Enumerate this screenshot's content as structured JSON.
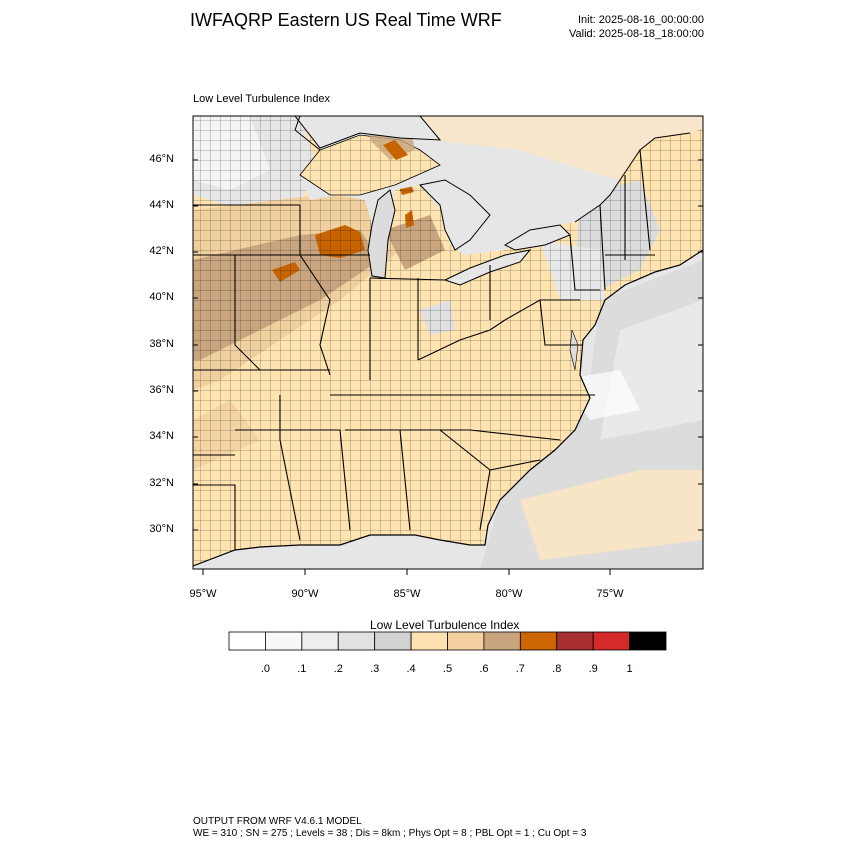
{
  "header": {
    "title": "IWFAQRP Eastern US Real Time WRF",
    "init": "Init: 2025-08-16_00:00:00",
    "valid": "Valid: 2025-08-18_18:00:00"
  },
  "map": {
    "subtitle": "Low Level Turbulence Index",
    "lat_labels": [
      "46°N",
      "44°N",
      "42°N",
      "40°N",
      "38°N",
      "36°N",
      "34°N",
      "32°N",
      "30°N"
    ],
    "lon_labels": [
      "95°W",
      "90°W",
      "85°W",
      "80°W",
      "75°W"
    ],
    "colors": {
      "ocean_light": "#e6e6e6",
      "ocean_mid": "#dcdcdc",
      "land_base": "#ffe3b0",
      "land_mid": "#f5d4a4",
      "land_tan": "#c8a57e",
      "land_orange": "#c86400",
      "lake": "#ececec",
      "boundary": "#000000"
    }
  },
  "colorbar": {
    "title": "Low Level Turbulence Index",
    "colors": [
      "#ffffff",
      "#f8f8f8",
      "#eeeeee",
      "#e2e2e2",
      "#d2d2d2",
      "#ffe0b0",
      "#f5d0a0",
      "#c8a57e",
      "#cc6600",
      "#a83030",
      "#d42a2a",
      "#000000"
    ],
    "labels": [
      ".0",
      ".1",
      ".2",
      ".3",
      ".4",
      ".5",
      ".6",
      ".7",
      ".8",
      ".9",
      "1"
    ]
  },
  "footer": {
    "line1": "OUTPUT FROM WRF V4.6.1 MODEL",
    "line2": "WE = 310 ; SN = 275 ; Levels = 38 ; Dis = 8km ; Phys Opt = 8 ; PBL Opt = 1 ; Cu Opt = 3"
  }
}
